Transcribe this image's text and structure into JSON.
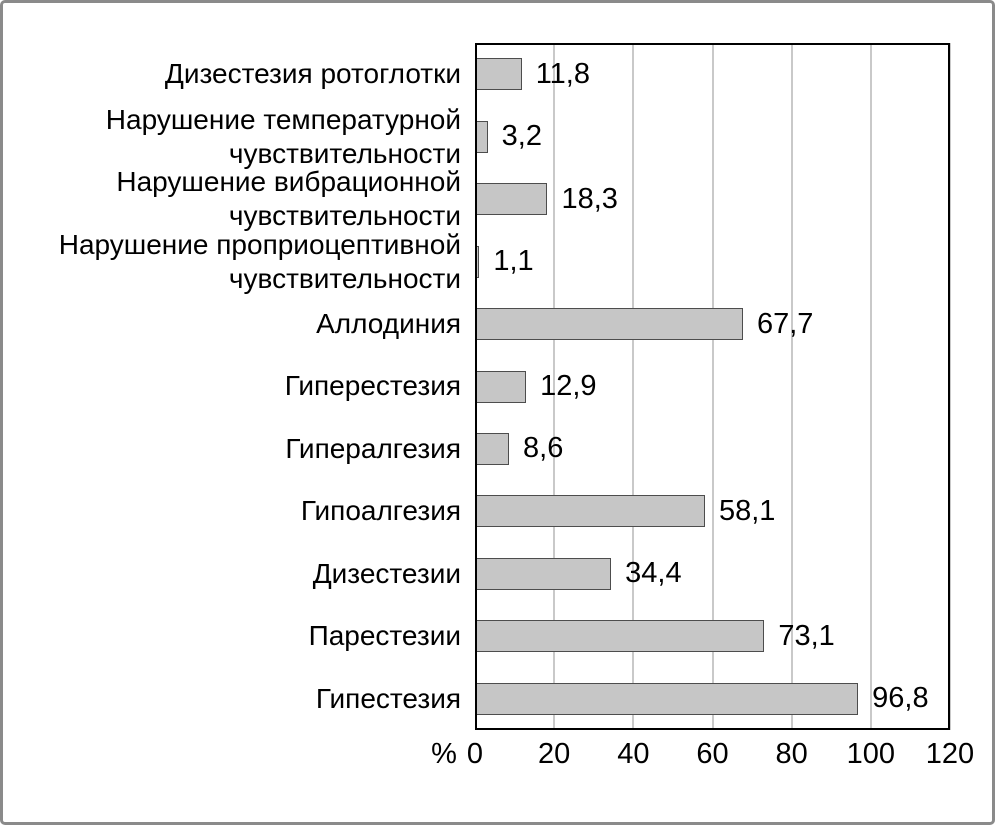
{
  "chart_data": {
    "type": "bar",
    "orientation": "horizontal",
    "title": "",
    "xlabel": "%",
    "ylabel": "",
    "xlim": [
      0,
      120
    ],
    "x_ticks": [
      0,
      20,
      40,
      60,
      80,
      100,
      120
    ],
    "grid": "vertical-gridlines-on",
    "legend": "none",
    "categories": [
      "Дизестезия ротоглотки",
      "Нарушение температурной чувствительности",
      "Нарушение вибрационной чувствительности",
      "Нарушение проприоцептивной чувствительности",
      "Аллодиния",
      "Гиперестезия",
      "Гипералгезия",
      "Гипоалгезия",
      "Дизестезии",
      "Парестезии",
      "Гипестезия"
    ],
    "values": [
      11.8,
      3.2,
      18.3,
      1.1,
      67.7,
      12.9,
      8.6,
      58.1,
      34.4,
      73.1,
      96.8
    ],
    "value_labels": [
      "11,8",
      "3,2",
      "18,3",
      "1,1",
      "67,7",
      "12,9",
      "8,6",
      "58,1",
      "34,4",
      "73,1",
      "96,8"
    ],
    "colors": {
      "bar_fill": "#c6c6c6",
      "bar_border": "#4d4d4d",
      "gridline": "#c9c9c9",
      "plot_frame": "#000000",
      "outer_border": "#8a8a8a",
      "text": "#000000",
      "background": "#ffffff"
    }
  }
}
